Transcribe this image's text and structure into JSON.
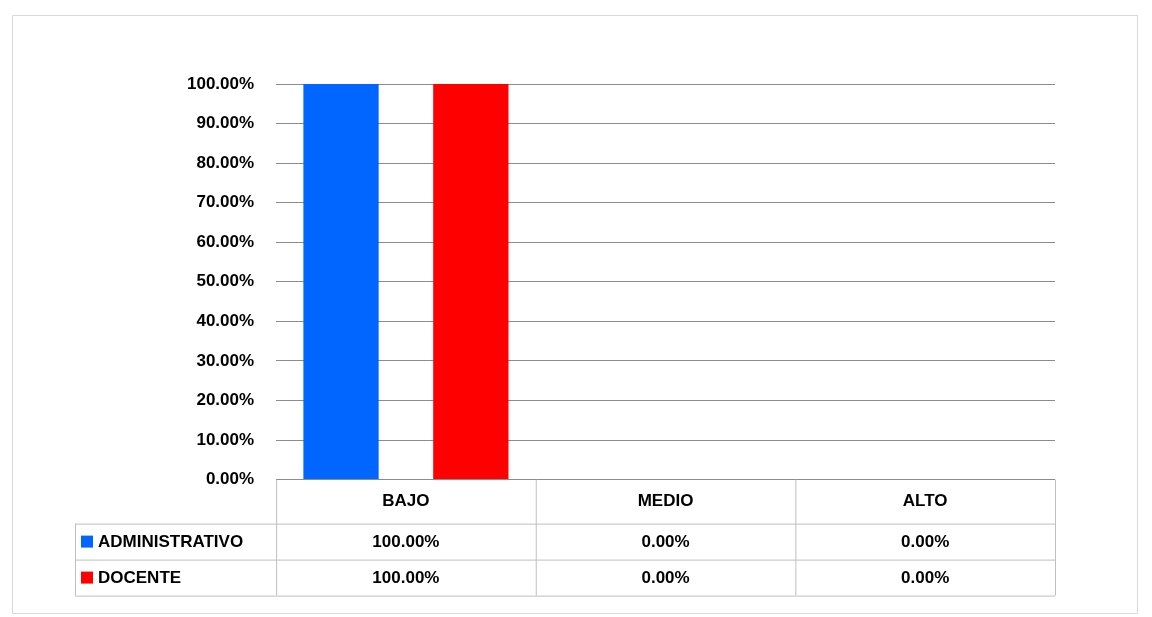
{
  "chart_data": {
    "type": "bar",
    "categories": [
      "BAJO",
      "MEDIO",
      "ALTO"
    ],
    "series": [
      {
        "name": "ADMINISTRATIVO",
        "color": "#0066ff",
        "values": [
          100,
          0,
          0
        ],
        "value_labels": [
          "100.00%",
          "0.00%",
          "0.00%"
        ]
      },
      {
        "name": "DOCENTE",
        "color": "#ff0000",
        "values": [
          100,
          0,
          0
        ],
        "value_labels": [
          "100.00%",
          "0.00%",
          "0.00%"
        ]
      }
    ],
    "ylim": [
      0,
      100
    ],
    "yticks": [
      {
        "value": 0,
        "label": "0.00%"
      },
      {
        "value": 10,
        "label": "10.00%"
      },
      {
        "value": 20,
        "label": "20.00%"
      },
      {
        "value": 30,
        "label": "30.00%"
      },
      {
        "value": 40,
        "label": "40.00%"
      },
      {
        "value": 50,
        "label": "50.00%"
      },
      {
        "value": 60,
        "label": "60.00%"
      },
      {
        "value": 70,
        "label": "70.00%"
      },
      {
        "value": 80,
        "label": "80.00%"
      },
      {
        "value": 90,
        "label": "90.00%"
      },
      {
        "value": 100,
        "label": "100.00%"
      }
    ],
    "grid": "y",
    "legend": "bottom left"
  }
}
